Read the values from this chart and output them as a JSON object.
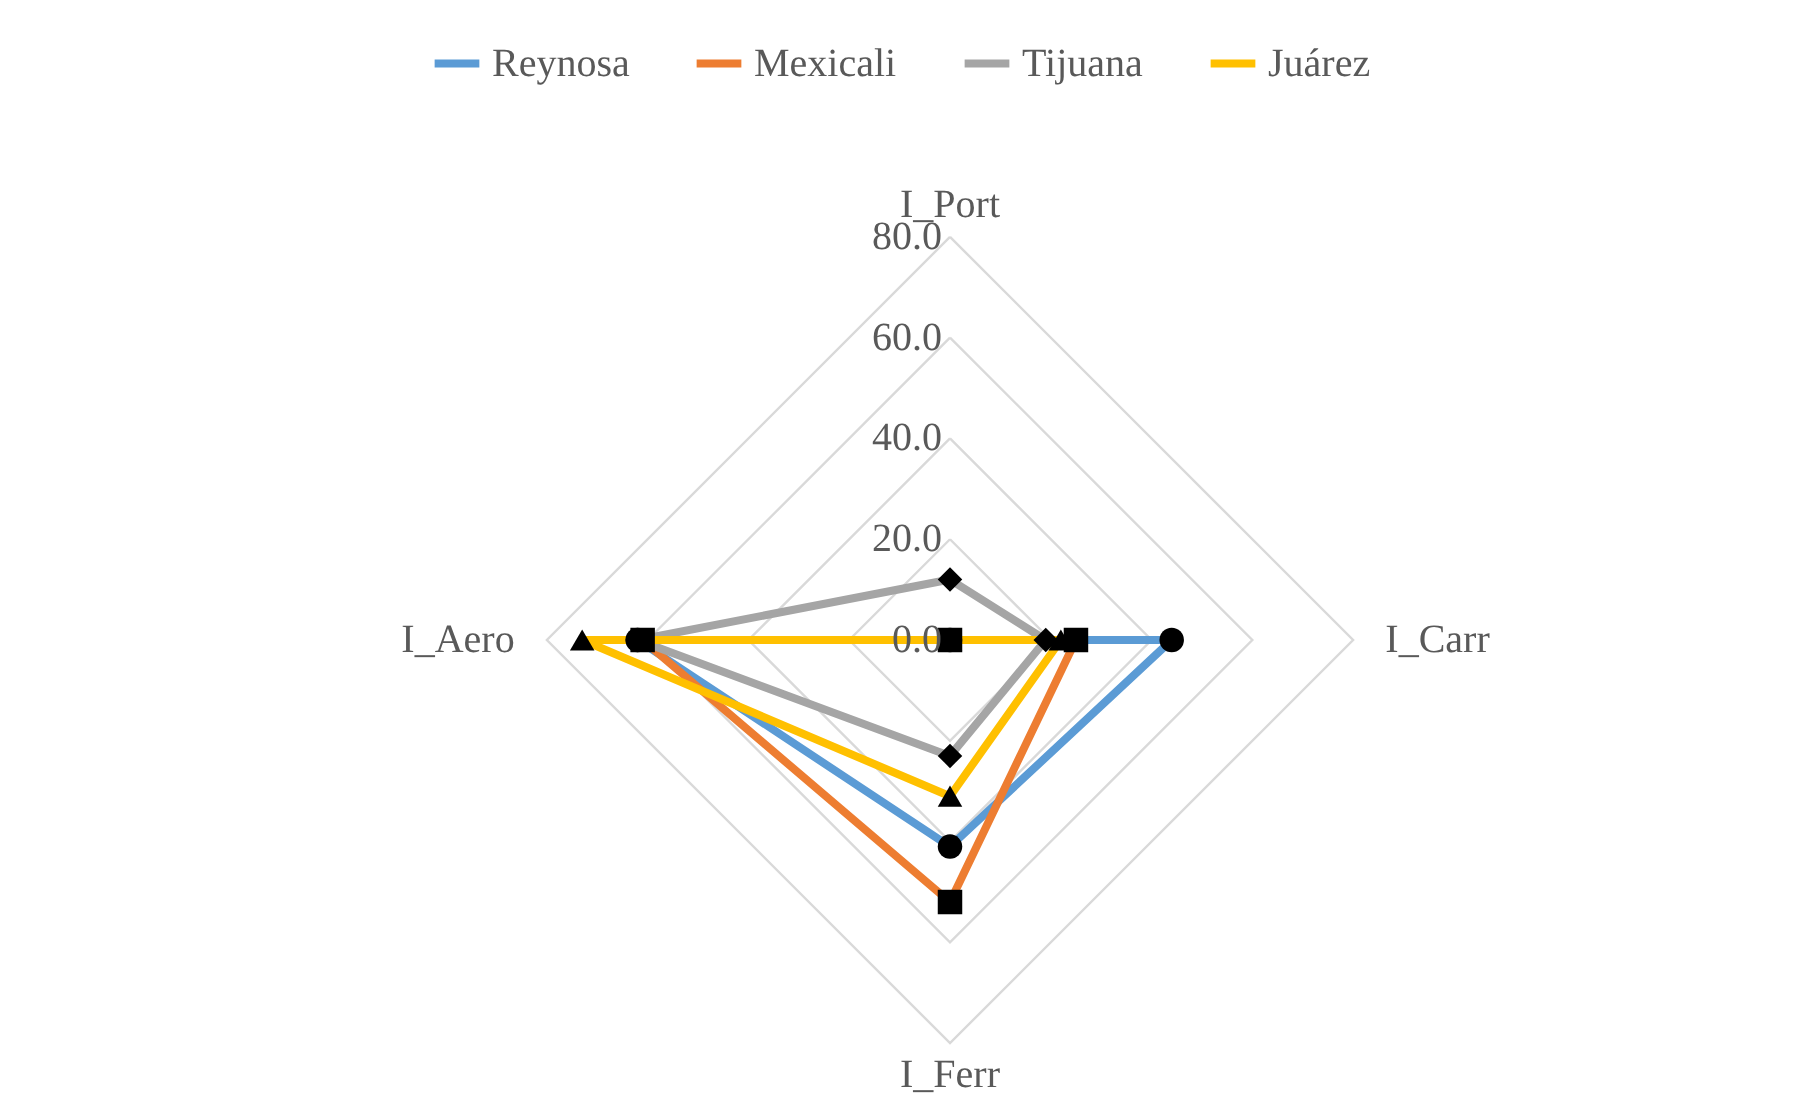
{
  "chart_data": {
    "type": "radar",
    "categories": [
      "I_Port",
      "I_Carr",
      "I_Ferr",
      "I_Aero"
    ],
    "series": [
      {
        "name": "Reynosa",
        "color": "#5b9bd5",
        "values": [
          0,
          44,
          41,
          62
        ]
      },
      {
        "name": "Mexicali",
        "color": "#ed7d31",
        "values": [
          0,
          25,
          52,
          61
        ]
      },
      {
        "name": "Tijuana",
        "color": "#a5a5a5",
        "values": [
          12,
          19,
          23,
          62
        ]
      },
      {
        "name": "Juárez",
        "color": "#ffc000",
        "values": [
          0,
          22,
          31,
          73
        ]
      }
    ],
    "ylim": [
      0,
      80
    ],
    "yticks": [
      {
        "value": 0,
        "label": "0.0"
      },
      {
        "value": 20,
        "label": "20.0"
      },
      {
        "value": 40,
        "label": "40.0"
      },
      {
        "value": 60,
        "label": "60.0"
      },
      {
        "value": 80,
        "label": "80.0"
      }
    ],
    "grid": true,
    "legend": "top",
    "marker": "circle",
    "line_style": "solid"
  }
}
